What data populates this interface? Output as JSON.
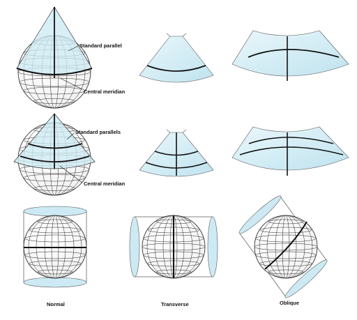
{
  "labels": {
    "standard_parallel": "Standard parallel",
    "central_meridian_1": "Central meridian",
    "standard_parallels": "Standard parallels",
    "central_meridian_2": "Central meridian"
  },
  "captions": {
    "normal": "Normal",
    "transverse": "Transverse",
    "oblique": "Oblique"
  },
  "colors": {
    "surface_fill": "#d6eef6",
    "line": "#111111",
    "grid": "#222222"
  }
}
